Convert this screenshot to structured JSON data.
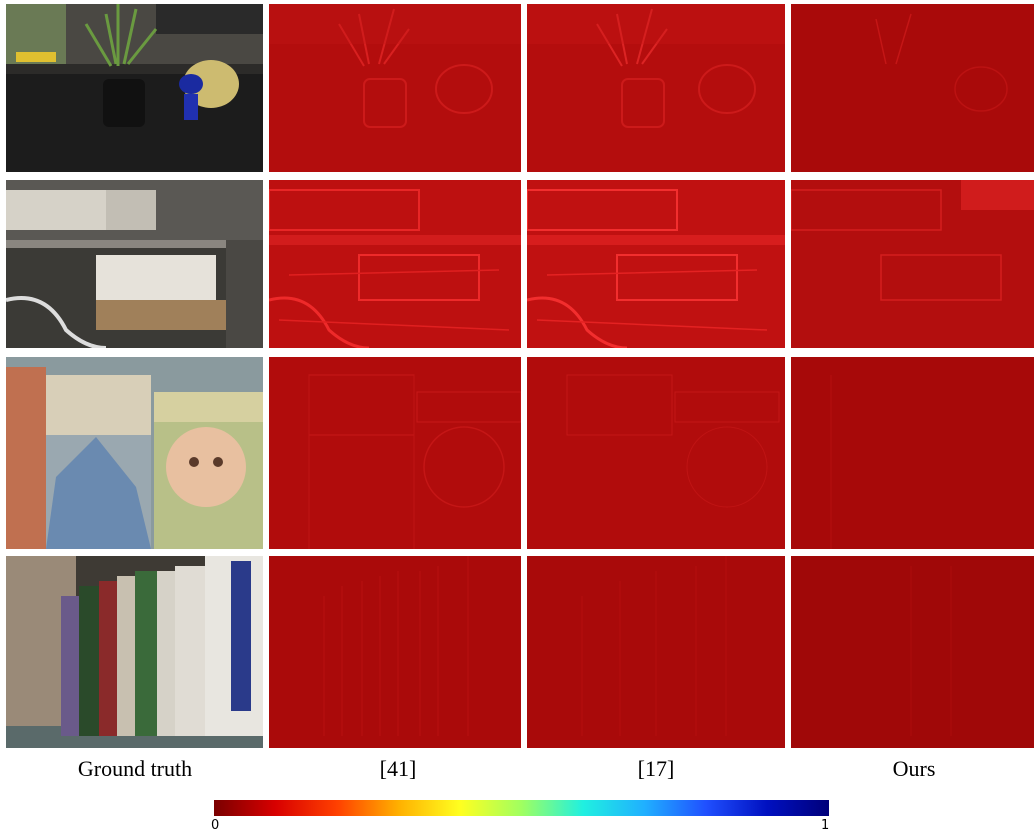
{
  "columns": [
    "Ground truth",
    "[41]",
    "[17]",
    "Ours"
  ],
  "colorbar": {
    "min_label": "0",
    "max_label": "1",
    "colors": [
      "#7a0000",
      "#d80000",
      "#ff4000",
      "#ffb000",
      "#ffff20",
      "#a0ff60",
      "#20f0e0",
      "#20b0ff",
      "#2050ff",
      "#0010c0",
      "#00007a"
    ]
  },
  "rows": [
    {
      "name": "plant-and-toy",
      "ground_truth": {
        "bg": "#2c2b29",
        "accent": "#5c8a3a"
      },
      "error_maps": [
        {
          "method": "[41]",
          "base": "#b30d0d",
          "highlight": "#d82020"
        },
        {
          "method": "[17]",
          "base": "#b40d0d",
          "highlight": "#dc2424"
        },
        {
          "method": "Ours",
          "base": "#a90a0a",
          "highlight": "#c41616"
        }
      ]
    },
    {
      "name": "bookshelf-with-box",
      "ground_truth": {
        "bg": "#3b3a36",
        "accent": "#d8d4cc"
      },
      "error_maps": [
        {
          "method": "[41]",
          "base": "#bd1010",
          "highlight": "#ee2a2a"
        },
        {
          "method": "[17]",
          "base": "#c01111",
          "highlight": "#f22e2e"
        },
        {
          "method": "Ours",
          "base": "#b30e0e",
          "highlight": "#dd2222"
        }
      ]
    },
    {
      "name": "childrens-books",
      "ground_truth": {
        "bg": "#8a9a9e",
        "accent": "#c9b07a"
      },
      "error_maps": [
        {
          "method": "[41]",
          "base": "#b10c0c",
          "highlight": "#c81818"
        },
        {
          "method": "[17]",
          "base": "#b10c0c",
          "highlight": "#c41616"
        },
        {
          "method": "Ours",
          "base": "#a70909",
          "highlight": "#b41010"
        }
      ]
    },
    {
      "name": "textbook-shelf",
      "ground_truth": {
        "bg": "#3e3a34",
        "accent": "#d6d2c8"
      },
      "error_maps": [
        {
          "method": "[41]",
          "base": "#aa0a0a",
          "highlight": "#b81010"
        },
        {
          "method": "[17]",
          "base": "#a90a0a",
          "highlight": "#b50f0f"
        },
        {
          "method": "Ours",
          "base": "#a00808",
          "highlight": "#ac0c0c"
        }
      ]
    }
  ]
}
